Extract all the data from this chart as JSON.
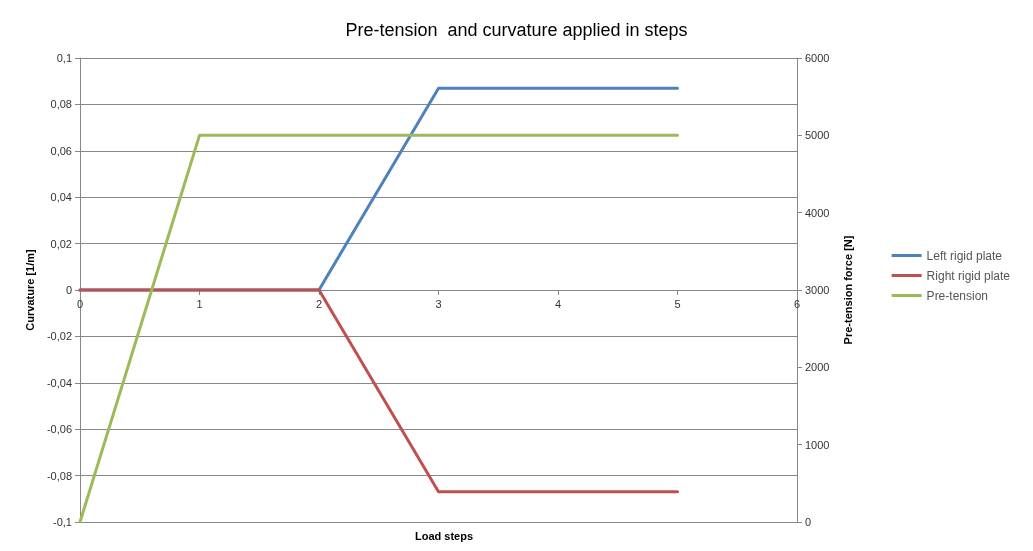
{
  "chart_data": {
    "type": "line",
    "title": "Pre-tension  and curvature applied in steps",
    "xlabel": "Load steps",
    "ylabel": "Curvature [1/m]",
    "y2label": "Pre-tension force [N]",
    "x": [
      0,
      1,
      2,
      3,
      4,
      5
    ],
    "series": [
      {
        "name": "Left rigid plate",
        "color": "#4f81bd",
        "values": [
          0,
          0,
          0,
          0.087,
          0.087,
          0.087
        ]
      },
      {
        "name": "Right rigid plate",
        "color": "#c0504d",
        "values": [
          0,
          0,
          0,
          -0.087,
          -0.087,
          -0.087
        ]
      },
      {
        "name": "Pre-tension",
        "color": "#9bbb59",
        "axis": "y2",
        "values": [
          0,
          5000,
          5000,
          5000,
          5000,
          5000
        ]
      }
    ],
    "xlim": [
      0,
      6
    ],
    "xticks": [
      0,
      1,
      2,
      3,
      4,
      5,
      6
    ],
    "ylim": [
      -0.1,
      0.1
    ],
    "yticks": [
      {
        "value": -0.1,
        "label": "-0,1"
      },
      {
        "value": -0.08,
        "label": "-0,08"
      },
      {
        "value": -0.06,
        "label": "-0,06"
      },
      {
        "value": -0.04,
        "label": "-0,04"
      },
      {
        "value": -0.02,
        "label": "-0,02"
      },
      {
        "value": 0,
        "label": "0"
      },
      {
        "value": 0.02,
        "label": "0,02"
      },
      {
        "value": 0.04,
        "label": "0,04"
      },
      {
        "value": 0.06,
        "label": "0,06"
      },
      {
        "value": 0.08,
        "label": "0,08"
      },
      {
        "value": 0.1,
        "label": "0,1"
      }
    ],
    "y2lim": [
      0,
      6000
    ],
    "y2ticks": [
      0,
      1000,
      2000,
      3000,
      4000,
      5000,
      6000
    ],
    "grid": "y",
    "legend": "right",
    "marker": "none",
    "line_style": "solid"
  }
}
